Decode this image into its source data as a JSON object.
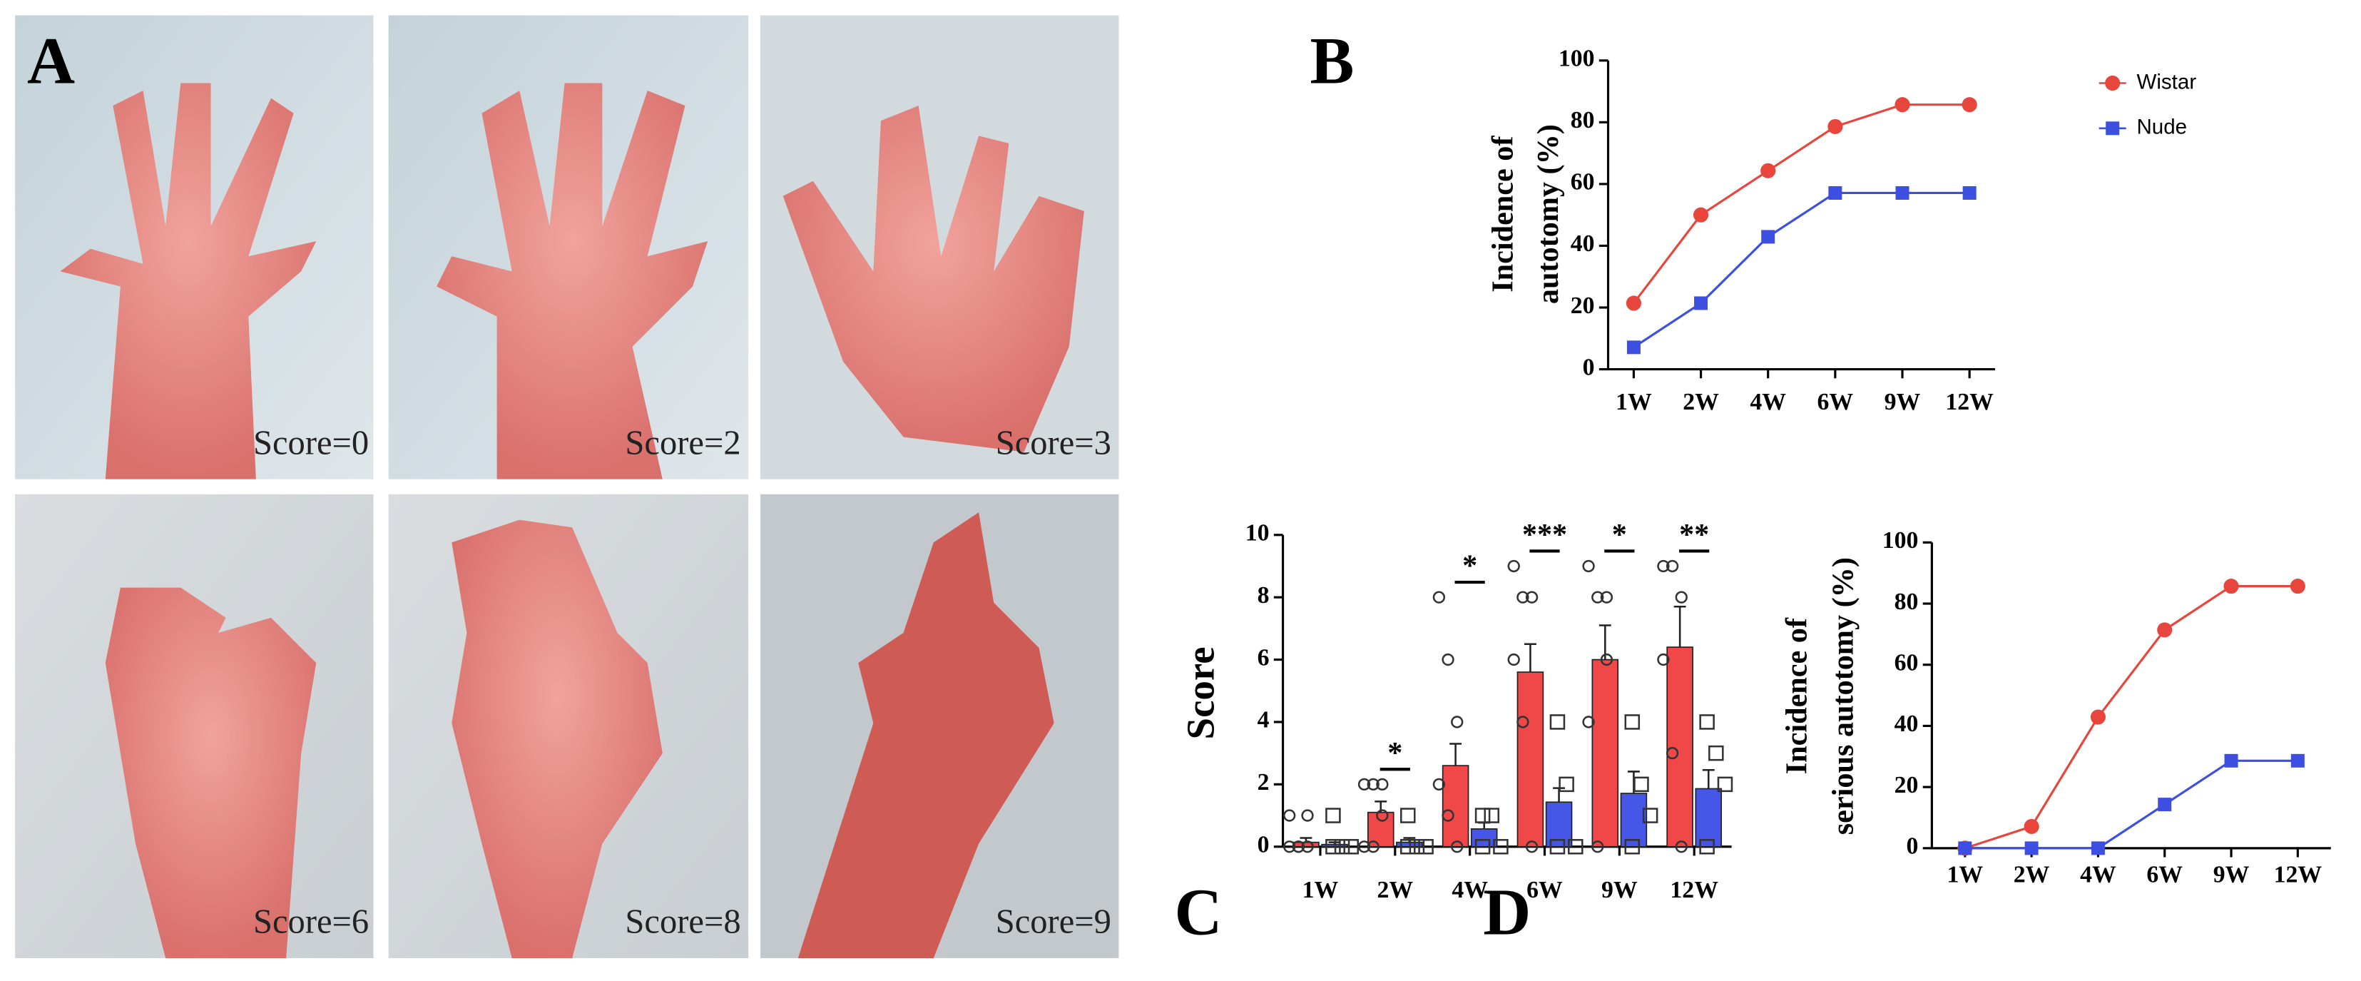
{
  "panel_a": {
    "label": "A",
    "captions": [
      "Score=0",
      "Score=2",
      "Score=3",
      "Score=6",
      "Score=8",
      "Score=9"
    ]
  },
  "chart_data": [
    {
      "type": "line",
      "panel_label": "B",
      "y_label": [
        "Incidence of",
        "autotomy (%)"
      ],
      "categories": [
        "1W",
        "2W",
        "4W",
        "6W",
        "9W",
        "12W"
      ],
      "series": [
        {
          "name": "Wistar",
          "color": "#e8453c",
          "marker": "circle",
          "values": [
            21.4,
            50,
            64.3,
            78.6,
            85.7,
            85.7
          ]
        },
        {
          "name": "Nude",
          "color": "#3d4fe0",
          "marker": "square",
          "values": [
            7.1,
            21.4,
            42.9,
            57.1,
            57.1,
            57.1
          ]
        }
      ],
      "ylim": [
        0,
        100
      ],
      "yticks": [
        0,
        20,
        40,
        60,
        80,
        100
      ],
      "legend": "right"
    },
    {
      "type": "bar",
      "panel_label": "C",
      "y_label": [
        "Score"
      ],
      "categories": [
        "1W",
        "2W",
        "4W",
        "6W",
        "9W",
        "12W"
      ],
      "series": [
        {
          "name": "Wistar",
          "color": "#f04848",
          "marker": "circle",
          "values": [
            0.14,
            1.1,
            2.6,
            5.6,
            6.0,
            6.4
          ],
          "errors": [
            0.14,
            0.35,
            0.7,
            0.9,
            1.1,
            1.3
          ],
          "points": [
            [
              1,
              0,
              0,
              0,
              0,
              1
            ],
            [
              2,
              2,
              1,
              0,
              0,
              2
            ],
            [
              8,
              6,
              4,
              2,
              1,
              0
            ],
            [
              9,
              8,
              8,
              6,
              4,
              0
            ],
            [
              9,
              8,
              6,
              4,
              0,
              8
            ],
            [
              9,
              9,
              8,
              6,
              3,
              0
            ]
          ]
        },
        {
          "name": "Nude",
          "color": "#4656e6",
          "marker": "square",
          "values": [
            0.07,
            0.14,
            0.57,
            1.43,
            1.71,
            1.86
          ],
          "errors": [
            0.07,
            0.14,
            0.2,
            0.45,
            0.7,
            0.6
          ],
          "points": [
            [
              1,
              0,
              0,
              0
            ],
            [
              1,
              0,
              0,
              0
            ],
            [
              1,
              1,
              0,
              0
            ],
            [
              4,
              2,
              0,
              0
            ],
            [
              4,
              2,
              1,
              0
            ],
            [
              4,
              3,
              2,
              0
            ]
          ]
        }
      ],
      "significance": [
        null,
        "*",
        "*",
        "***",
        "*",
        "**"
      ],
      "ylim": [
        0,
        10
      ],
      "yticks": [
        0,
        2,
        4,
        6,
        8,
        10
      ]
    },
    {
      "type": "line",
      "panel_label": "D",
      "y_label": [
        "Incidence of",
        "serious autotomy (%)"
      ],
      "categories": [
        "1W",
        "2W",
        "4W",
        "6W",
        "9W",
        "12W"
      ],
      "series": [
        {
          "name": "Wistar",
          "color": "#e8453c",
          "marker": "circle",
          "values": [
            0,
            7.1,
            42.9,
            71.4,
            85.7,
            85.7
          ]
        },
        {
          "name": "Nude",
          "color": "#3d4fe0",
          "marker": "square",
          "values": [
            0,
            0,
            0,
            14.3,
            28.6,
            28.6
          ]
        }
      ],
      "ylim": [
        0,
        100
      ],
      "yticks": [
        0,
        20,
        40,
        60,
        80,
        100
      ]
    }
  ]
}
